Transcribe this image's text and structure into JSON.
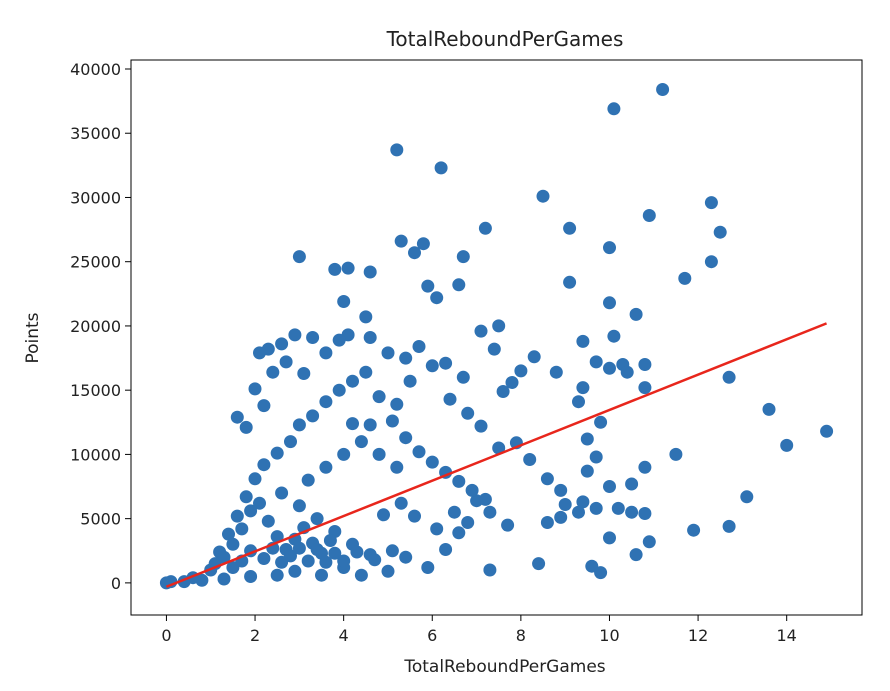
{
  "chart_data": {
    "type": "scatter",
    "title": "TotalReboundPerGames",
    "xlabel": "TotalReboundPerGames",
    "ylabel": "Points",
    "xlim": [
      -0.8,
      15.7
    ],
    "ylim": [
      -2500,
      40700
    ],
    "x_ticks": [
      0,
      2,
      4,
      6,
      8,
      10,
      12,
      14
    ],
    "y_ticks": [
      0,
      5000,
      10000,
      15000,
      20000,
      25000,
      30000,
      35000,
      40000
    ],
    "grid": false,
    "legend": "none",
    "point_color": "#2f72b3",
    "line_color": "#e8261c",
    "fit_line": {
      "x": [
        0,
        14.9
      ],
      "y": [
        -300,
        20200
      ]
    },
    "points": [
      [
        11.2,
        38400
      ],
      [
        10.1,
        36900
      ],
      [
        5.2,
        33700
      ],
      [
        6.2,
        32300
      ],
      [
        8.5,
        30100
      ],
      [
        12.3,
        29600
      ],
      [
        10.9,
        28600
      ],
      [
        9.1,
        27600
      ],
      [
        7.2,
        27600
      ],
      [
        12.5,
        27300
      ],
      [
        5.3,
        26600
      ],
      [
        5.8,
        26400
      ],
      [
        10.0,
        26100
      ],
      [
        5.6,
        25700
      ],
      [
        3.0,
        25400
      ],
      [
        6.7,
        25400
      ],
      [
        12.3,
        25000
      ],
      [
        3.8,
        24400
      ],
      [
        4.1,
        24500
      ],
      [
        4.6,
        24200
      ],
      [
        9.1,
        23400
      ],
      [
        6.6,
        23200
      ],
      [
        5.9,
        23100
      ],
      [
        11.7,
        23700
      ],
      [
        6.1,
        22200
      ],
      [
        4.0,
        21900
      ],
      [
        10.0,
        21800
      ],
      [
        10.6,
        20900
      ],
      [
        4.5,
        20700
      ],
      [
        7.5,
        20000
      ],
      [
        9.4,
        18800
      ],
      [
        10.1,
        19200
      ],
      [
        10.3,
        17000
      ],
      [
        10.8,
        17000
      ],
      [
        9.7,
        17200
      ],
      [
        10.0,
        16700
      ],
      [
        10.4,
        16400
      ],
      [
        10.8,
        15200
      ],
      [
        12.7,
        16000
      ],
      [
        13.6,
        13500
      ],
      [
        14.9,
        11800
      ],
      [
        14.0,
        10700
      ],
      [
        11.5,
        10000
      ],
      [
        10.8,
        9000
      ],
      [
        10.0,
        7500
      ],
      [
        10.5,
        7700
      ],
      [
        9.4,
        6300
      ],
      [
        9.7,
        5800
      ],
      [
        10.2,
        5800
      ],
      [
        10.5,
        5500
      ],
      [
        10.8,
        5400
      ],
      [
        11.9,
        4100
      ],
      [
        12.7,
        4400
      ],
      [
        13.1,
        6700
      ],
      [
        10.0,
        3500
      ],
      [
        10.6,
        2200
      ],
      [
        10.9,
        3200
      ],
      [
        9.6,
        1300
      ],
      [
        9.8,
        800
      ],
      [
        8.4,
        1500
      ],
      [
        7.3,
        1000
      ],
      [
        8.6,
        4700
      ],
      [
        8.9,
        5100
      ],
      [
        9.0,
        6100
      ],
      [
        9.3,
        5500
      ],
      [
        9.5,
        8700
      ],
      [
        9.7,
        9800
      ],
      [
        9.5,
        11200
      ],
      [
        9.8,
        12500
      ],
      [
        9.4,
        15200
      ],
      [
        9.3,
        14100
      ],
      [
        8.8,
        16400
      ],
      [
        8.3,
        17600
      ],
      [
        8.0,
        16500
      ],
      [
        7.8,
        15600
      ],
      [
        7.6,
        14900
      ],
      [
        7.4,
        18200
      ],
      [
        7.1,
        19600
      ],
      [
        6.7,
        16000
      ],
      [
        6.3,
        17100
      ],
      [
        5.7,
        18400
      ],
      [
        5.4,
        17500
      ],
      [
        5.0,
        17900
      ],
      [
        4.6,
        19100
      ],
      [
        4.1,
        19300
      ],
      [
        3.9,
        18900
      ],
      [
        3.6,
        17900
      ],
      [
        3.3,
        19100
      ],
      [
        2.9,
        19300
      ],
      [
        2.6,
        18600
      ],
      [
        2.3,
        18200
      ],
      [
        2.1,
        17900
      ],
      [
        2.7,
        17200
      ],
      [
        3.1,
        16300
      ],
      [
        2.4,
        16400
      ],
      [
        2.0,
        15100
      ],
      [
        1.6,
        12900
      ],
      [
        2.2,
        13800
      ],
      [
        1.8,
        12100
      ],
      [
        4.2,
        12400
      ],
      [
        4.6,
        12300
      ],
      [
        5.2,
        13900
      ],
      [
        5.5,
        15700
      ],
      [
        6.0,
        16900
      ],
      [
        6.4,
        14300
      ],
      [
        6.8,
        13200
      ],
      [
        7.1,
        12200
      ],
      [
        7.5,
        10500
      ],
      [
        7.9,
        10900
      ],
      [
        8.2,
        9600
      ],
      [
        8.6,
        8100
      ],
      [
        8.9,
        7200
      ],
      [
        7.7,
        4500
      ],
      [
        7.3,
        5500
      ],
      [
        7.0,
        6400
      ],
      [
        6.6,
        3900
      ],
      [
        6.3,
        2600
      ],
      [
        5.9,
        1200
      ],
      [
        5.4,
        2000
      ],
      [
        5.0,
        900
      ],
      [
        4.4,
        600
      ],
      [
        4.0,
        1200
      ],
      [
        3.5,
        600
      ],
      [
        2.9,
        900
      ],
      [
        2.5,
        600
      ],
      [
        1.9,
        500
      ],
      [
        1.3,
        300
      ],
      [
        0.8,
        200
      ],
      [
        0.4,
        100
      ],
      [
        0.0,
        0
      ],
      [
        0.1,
        100
      ],
      [
        0.6,
        400
      ],
      [
        1.0,
        1000
      ],
      [
        1.2,
        2400
      ],
      [
        1.4,
        3800
      ],
      [
        1.6,
        5200
      ],
      [
        1.8,
        6700
      ],
      [
        2.0,
        8100
      ],
      [
        2.2,
        9200
      ],
      [
        2.5,
        10100
      ],
      [
        2.8,
        11000
      ],
      [
        3.0,
        12300
      ],
      [
        3.3,
        13000
      ],
      [
        3.6,
        14100
      ],
      [
        3.9,
        15000
      ],
      [
        4.2,
        15700
      ],
      [
        4.5,
        16400
      ],
      [
        4.8,
        14500
      ],
      [
        5.1,
        12600
      ],
      [
        5.4,
        11300
      ],
      [
        5.7,
        10200
      ],
      [
        6.0,
        9400
      ],
      [
        6.3,
        8600
      ],
      [
        6.6,
        7900
      ],
      [
        6.9,
        7200
      ],
      [
        7.2,
        6500
      ],
      [
        3.2,
        8000
      ],
      [
        3.6,
        9000
      ],
      [
        4.0,
        10000
      ],
      [
        4.4,
        11000
      ],
      [
        4.8,
        10000
      ],
      [
        5.2,
        9000
      ],
      [
        2.6,
        7000
      ],
      [
        3.0,
        6000
      ],
      [
        3.4,
        5000
      ],
      [
        3.8,
        4000
      ],
      [
        4.2,
        3000
      ],
      [
        4.6,
        2200
      ],
      [
        1.5,
        3000
      ],
      [
        1.7,
        4200
      ],
      [
        1.9,
        5600
      ],
      [
        2.1,
        6200
      ],
      [
        2.3,
        4800
      ],
      [
        2.5,
        3600
      ],
      [
        2.7,
        2600
      ],
      [
        2.9,
        3400
      ],
      [
        3.1,
        4300
      ],
      [
        3.3,
        3100
      ],
      [
        3.5,
        2300
      ],
      [
        3.7,
        3300
      ],
      [
        4.9,
        5300
      ],
      [
        5.3,
        6200
      ],
      [
        5.6,
        5200
      ],
      [
        6.1,
        4200
      ],
      [
        6.5,
        5500
      ],
      [
        6.8,
        4700
      ],
      [
        1.1,
        1500
      ],
      [
        1.3,
        2000
      ],
      [
        1.5,
        1200
      ],
      [
        1.7,
        1700
      ],
      [
        1.9,
        2500
      ],
      [
        2.2,
        1900
      ],
      [
        2.4,
        2700
      ],
      [
        2.6,
        1600
      ],
      [
        2.8,
        2100
      ],
      [
        3.0,
        2700
      ],
      [
        3.2,
        1700
      ],
      [
        3.4,
        2600
      ],
      [
        3.6,
        1600
      ],
      [
        3.8,
        2300
      ],
      [
        4.0,
        1700
      ],
      [
        4.3,
        2400
      ],
      [
        4.7,
        1800
      ],
      [
        5.1,
        2500
      ]
    ]
  }
}
